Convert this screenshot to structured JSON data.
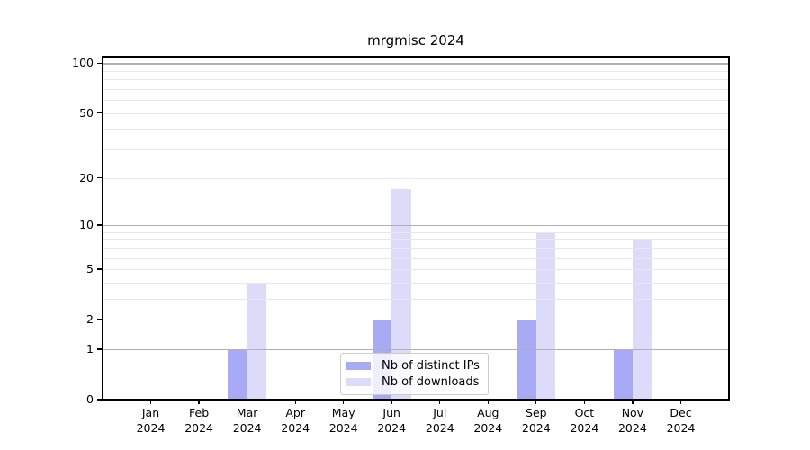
{
  "chart_data": {
    "type": "bar",
    "title": "mrgmisc 2024",
    "year": "2024",
    "categories": [
      "Jan",
      "Feb",
      "Mar",
      "Apr",
      "May",
      "Jun",
      "Jul",
      "Aug",
      "Sep",
      "Oct",
      "Nov",
      "Dec"
    ],
    "series": [
      {
        "name": "Nb of distinct IPs",
        "key": "distinct-ips",
        "color": "#a9aaf6",
        "values": [
          0,
          0,
          1,
          0,
          0,
          2,
          0,
          0,
          2,
          0,
          1,
          0
        ]
      },
      {
        "name": "Nb of downloads",
        "key": "downloads",
        "color": "#dcdcfa",
        "values": [
          0,
          0,
          4,
          0,
          0,
          17,
          0,
          0,
          9,
          0,
          8,
          0
        ]
      }
    ],
    "xlabel": "",
    "ylabel": "",
    "y_ticks": [
      0,
      1,
      2,
      5,
      10,
      20,
      50,
      100
    ],
    "scale": "log1p",
    "ylim": [
      0,
      111
    ],
    "grid": true,
    "grid_major_values": [
      1,
      10,
      100
    ],
    "grid_minor_values": [
      2,
      3,
      4,
      5,
      6,
      7,
      8,
      9,
      20,
      30,
      40,
      50,
      60,
      70,
      80,
      90
    ],
    "legend_position": "lower center"
  },
  "colors": {
    "background": "#ffffff",
    "axis": "#000000",
    "text": "#000000",
    "grid_major": "#b0b0b0",
    "grid_minor": "#e8e8e8",
    "legend_border": "#cccccc",
    "legend_bg": "rgba(255,255,255,0.8)"
  }
}
